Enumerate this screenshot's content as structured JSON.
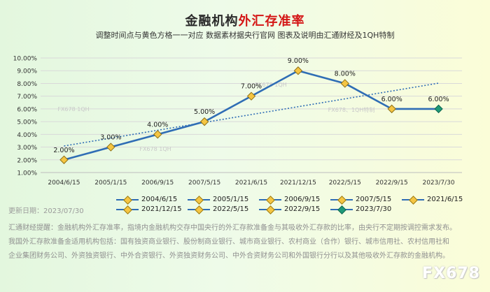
{
  "header": {
    "title_part1": "金融机构",
    "title_part2": "外汇存准率",
    "subtitle": "调整时间点与黄色方格一一对应 数据素材据央行官网 图表及说明由汇通财经及1QH特制"
  },
  "chart_data": {
    "type": "line",
    "categories": [
      "2004/6/15",
      "2005/1/15",
      "2006/9/15",
      "2007/5/15",
      "2021/6/15",
      "2021/12/15",
      "2022/5/15",
      "2022/9/15",
      "2023/7/30"
    ],
    "values": [
      2,
      3,
      4,
      5,
      7,
      9,
      8,
      6,
      6
    ],
    "value_labels": [
      "2.00%",
      "3.00%",
      "4.00%",
      "5.00%",
      "7.00%",
      "9.00%",
      "8.00%",
      "6.00%",
      "6.00%"
    ],
    "y_ticks": [
      "1.00%",
      "2.00%",
      "3.00%",
      "4.00%",
      "5.00%",
      "6.00%",
      "7.00%",
      "8.00%",
      "9.00%",
      "10.00%"
    ],
    "ylim": [
      1,
      10
    ],
    "trendline": "linear",
    "grid": true,
    "legend": "bottom",
    "colors": {
      "line": "#2f6db5",
      "marker": "#f5c542",
      "marker_last": "#1f9a78",
      "trend": "#2f6db5"
    }
  },
  "watermarks": [
    "FX678 1QH",
    "FX678 1QH",
    "FX678 1QH",
    "FX678、1QH特制"
  ],
  "legend_items": [
    "2004/6/15",
    "2005/1/15",
    "2006/9/15",
    "2007/5/15",
    "2021/6/15",
    "2021/12/15",
    "2022/5/15",
    "2022/9/15",
    "2023/7/30"
  ],
  "footer": {
    "update_date": "更新日期：2023/07/30",
    "note1": "汇通财经提醒：金融机构外汇存准率，指境内金融机构交存中国央行的外汇存款准备金与其吸收外汇存款的比率，由央行不定期按调控需求发布。",
    "note2": "我国外汇存款准备金适用机构包括：国有独资商业银行、股份制商业银行、城市商业银行、农村商业（合作）银行、城市信用社、农村信用社和",
    "note3": "企业集团财务公司、外资独资银行、中外合资银行、外资独资财务公司、中外合资财务公司和外国银行分行以及其他吸收外汇存款的金融机构。",
    "logo": "FX678"
  }
}
